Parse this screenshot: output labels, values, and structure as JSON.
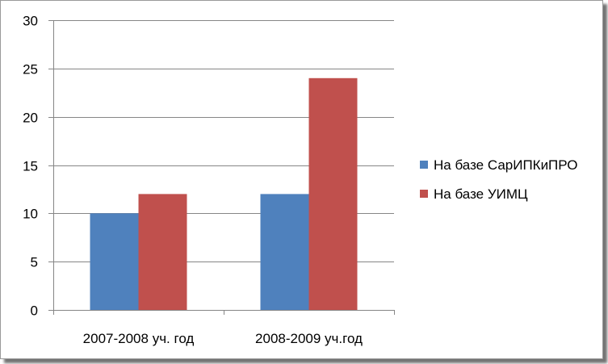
{
  "chart_data": {
    "type": "bar",
    "categories": [
      "2007-2008 уч. год",
      "2008-2009 уч.год"
    ],
    "series": [
      {
        "name": "На базе СарИПКиПРО",
        "values": [
          10,
          12
        ],
        "color": "#4f81bd"
      },
      {
        "name": "На базе УИМЦ",
        "values": [
          12,
          24
        ],
        "color": "#c0504d"
      }
    ],
    "ylim": [
      0,
      30
    ],
    "yticks": [
      0,
      5,
      10,
      15,
      20,
      25,
      30
    ],
    "grid": true,
    "legend_position": "right"
  }
}
